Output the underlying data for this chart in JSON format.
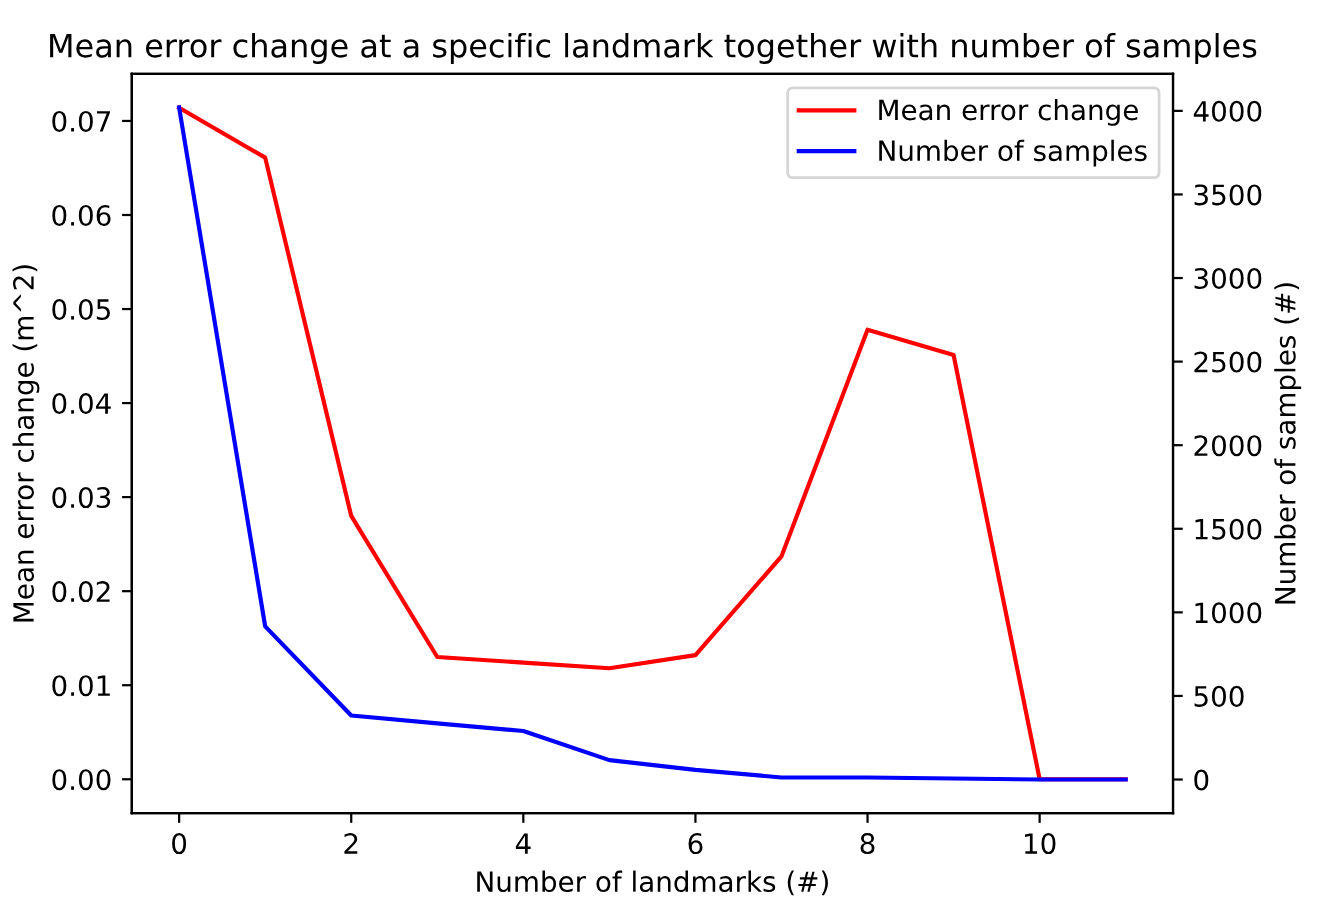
{
  "chart_data": {
    "type": "line",
    "title": "Mean error change at a specific landmark together with number of samples",
    "xlabel": "Number of landmarks (#)",
    "ylabel": "Mean error change (m^2)",
    "y2label": "Number of samples (#)",
    "x": [
      0,
      1,
      2,
      3,
      4,
      5,
      6,
      7,
      8,
      9,
      10,
      11
    ],
    "series": [
      {
        "name": "Mean error change",
        "color": "#ff0000",
        "values": [
          0.0714,
          0.0661,
          0.028,
          0.013,
          0.0124,
          0.0118,
          0.0132,
          0.0237,
          0.0478,
          0.0451,
          0.0,
          0.0
        ]
      },
      {
        "name": "Number of samples",
        "color": "#0000ff",
        "axis": "y2",
        "values": [
          4020,
          916,
          383,
          336,
          290,
          116,
          58,
          12,
          12,
          6,
          0,
          0
        ]
      }
    ],
    "xlim": [
      -0.55,
      11.55
    ],
    "xticks": [
      0,
      2,
      4,
      6,
      8,
      10
    ],
    "ylim": [
      -0.0036,
      0.075
    ],
    "yticks": [
      {
        "value": 0,
        "label": "0.00"
      },
      0.01,
      0.02,
      0.03,
      0.04,
      0.05,
      0.06,
      0.07
    ],
    "y2lim": [
      -201,
      4221
    ],
    "y2ticks": [
      0,
      500,
      1000,
      1500,
      2000,
      2500,
      3000,
      3500,
      4000
    ],
    "legend": "top right",
    "grid": false,
    "marker": "none",
    "line_style": "solid"
  }
}
